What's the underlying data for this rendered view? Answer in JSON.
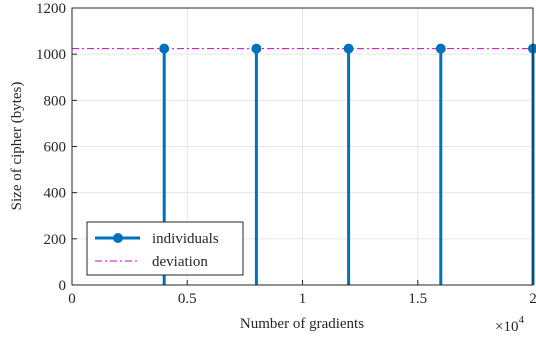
{
  "chart_data": {
    "type": "line",
    "xlabel": "Number of gradients",
    "ylabel": "Size of cipher (bytes)",
    "x_multiplier_label": "×10",
    "x_multiplier_exponent": "4",
    "xlim": [
      0,
      2
    ],
    "ylim": [
      0,
      1200
    ],
    "grid": true,
    "legend_position": "bottom-left",
    "x_ticks": [
      "0",
      "0.5",
      "1",
      "1.5",
      "2"
    ],
    "y_ticks": [
      "0",
      "200",
      "400",
      "600",
      "800",
      "1000",
      "1200"
    ],
    "x_tick_values": [
      0,
      0.5,
      1,
      1.5,
      2
    ],
    "y_tick_values": [
      0,
      200,
      400,
      600,
      800,
      1000,
      1200
    ],
    "series": [
      {
        "name": "individuals",
        "style": "stem",
        "color": "#0072BD",
        "x": [
          0.4,
          0.8,
          1.2,
          1.6,
          2.0
        ],
        "y": [
          1024,
          1024,
          1024,
          1024,
          1024
        ]
      },
      {
        "name": "deviation",
        "style": "dash-dot",
        "color": "#CC00CC",
        "y_const": 1024
      }
    ]
  }
}
